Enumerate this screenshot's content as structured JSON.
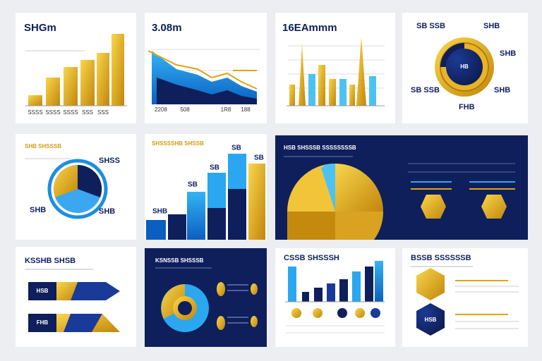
{
  "cards": [
    {
      "title": "SHGm",
      "labels": [
        "SSSS",
        "SSSS",
        "SSSS",
        "SSS",
        "SSS"
      ]
    },
    {
      "title": "3.08m",
      "labels": [
        "2208",
        "508",
        "1R8",
        "188"
      ]
    },
    {
      "title": "16EAmmm"
    },
    {
      "labels": [
        "SB SSB",
        "SHB",
        "SHB",
        "SB SSB",
        "SHB",
        "HB",
        "FHB"
      ]
    },
    {
      "title": "SHB SHSSSB",
      "labels": [
        "SHSS",
        "SHB",
        "SHB"
      ]
    },
    {
      "title": "SHSSSSHB SHSSB",
      "labels": [
        "SHB",
        "SB",
        "SB",
        "SB",
        "SB"
      ]
    },
    {
      "title": "HSB SHSSSB SSSSSSSSB"
    },
    {
      "title": "KSSHB SHSB",
      "labels": [
        "HSB",
        "FHB"
      ]
    },
    {
      "title": "KSNSSB SHSSSB"
    },
    {
      "title": "CSSB SHSSSH"
    },
    {
      "title": "BSSB SSSSSSB",
      "labels": [
        "HSB"
      ]
    }
  ]
}
